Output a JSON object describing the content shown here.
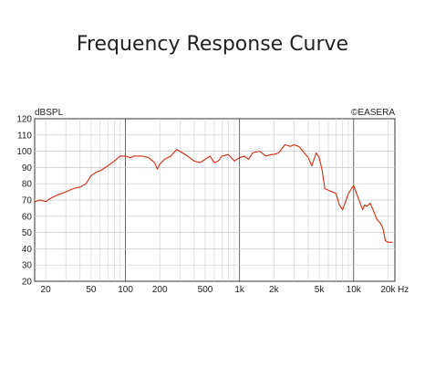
{
  "chart_data": {
    "type": "line",
    "title": "Frequency Response Curve",
    "ylabel": "dBSPL",
    "xlabel": "",
    "watermark": "©EASERA",
    "x_scale": "log",
    "xlim": [
      16,
      23000
    ],
    "ylim": [
      20,
      120
    ],
    "y_ticks": [
      20,
      30,
      40,
      50,
      60,
      70,
      80,
      90,
      100,
      110,
      120
    ],
    "x_ticks": [
      {
        "value": 20,
        "label": "20"
      },
      {
        "value": 50,
        "label": "50"
      },
      {
        "value": 100,
        "label": "100"
      },
      {
        "value": 200,
        "label": "200"
      },
      {
        "value": 500,
        "label": "500"
      },
      {
        "value": 1000,
        "label": "1k"
      },
      {
        "value": 2000,
        "label": "2k"
      },
      {
        "value": 5000,
        "label": "5k"
      },
      {
        "value": 10000,
        "label": "10k"
      },
      {
        "value": 20000,
        "label": "20k"
      }
    ],
    "x_unit": "Hz",
    "grid": true,
    "line_color": "#d62b10",
    "series": [
      {
        "x": [
          16,
          18,
          20,
          22,
          25,
          30,
          35,
          40,
          45,
          50,
          55,
          60,
          70,
          80,
          90,
          100,
          110,
          120,
          140,
          160,
          180,
          190,
          200,
          220,
          250,
          280,
          300,
          350,
          400,
          450,
          500,
          550,
          600,
          650,
          700,
          800,
          900,
          1000,
          1100,
          1200,
          1300,
          1500,
          1700,
          1900,
          2000,
          2200,
          2500,
          2800,
          3000,
          3300,
          3600,
          4000,
          4300,
          4700,
          5000,
          5300,
          5600,
          6000,
          6500,
          7000,
          7500,
          8000,
          8500,
          9000,
          10000,
          11000,
          12000,
          12500,
          13000,
          14000,
          15000,
          16000,
          17000,
          18000,
          19000,
          20000,
          21000,
          22000
        ],
        "y": [
          69,
          70,
          69,
          71,
          73,
          75,
          77,
          78,
          80,
          85,
          87,
          88,
          91,
          94,
          97,
          97,
          96,
          97,
          97,
          96,
          93,
          89,
          92,
          95,
          97,
          101,
          100,
          97,
          94,
          93,
          95,
          97,
          93,
          94,
          97,
          98,
          94,
          96,
          97,
          95,
          99,
          100,
          97,
          98,
          98,
          99,
          104,
          103,
          104,
          103,
          100,
          96,
          91,
          99,
          96,
          88,
          77,
          76,
          75,
          74,
          67,
          64,
          69,
          74,
          79,
          71,
          64,
          67,
          66,
          68,
          63,
          58,
          56,
          53,
          45,
          44,
          44,
          44
        ]
      }
    ]
  }
}
